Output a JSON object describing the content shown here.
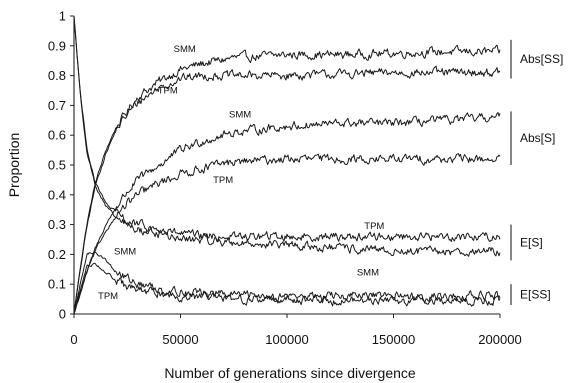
{
  "chart_data": {
    "type": "line",
    "xlabel": "Number of generations since divergence",
    "ylabel": "Proportion",
    "xlim": [
      0,
      200000
    ],
    "ylim": [
      0,
      1
    ],
    "x_ticks": [
      0,
      50000,
      100000,
      150000,
      200000
    ],
    "x_tick_labels": [
      "0",
      "50000",
      "100000",
      "150000",
      "200000"
    ],
    "y_ticks": [
      0,
      0.1,
      0.2,
      0.3,
      0.4,
      0.5,
      0.6,
      0.7,
      0.8,
      0.9,
      1
    ],
    "y_tick_labels": [
      "0",
      "0.1",
      "0.2",
      "0.3",
      "0.4",
      "0.5",
      "0.6",
      "0.7",
      "0.8",
      "0.9",
      "1"
    ],
    "grid": false,
    "series": [
      {
        "name": "SMM",
        "group": "Abs[SS]",
        "x": [
          0,
          3000,
          6000,
          10000,
          15000,
          20000,
          25000,
          30000,
          40000,
          50000,
          60000,
          75000,
          100000,
          125000,
          150000,
          175000,
          200000
        ],
        "y": [
          0.0,
          0.16,
          0.3,
          0.44,
          0.55,
          0.63,
          0.68,
          0.73,
          0.78,
          0.82,
          0.84,
          0.86,
          0.87,
          0.87,
          0.875,
          0.88,
          0.88
        ]
      },
      {
        "name": "TPM",
        "group": "Abs[SS]",
        "x": [
          0,
          3000,
          6000,
          10000,
          15000,
          20000,
          25000,
          30000,
          40000,
          50000,
          60000,
          75000,
          100000,
          125000,
          150000,
          175000,
          200000
        ],
        "y": [
          0.0,
          0.15,
          0.29,
          0.43,
          0.54,
          0.62,
          0.67,
          0.71,
          0.76,
          0.79,
          0.8,
          0.8,
          0.8,
          0.805,
          0.81,
          0.81,
          0.81
        ]
      },
      {
        "name": "SMM",
        "group": "Abs[S]",
        "x": [
          0,
          3000,
          6000,
          10000,
          15000,
          20000,
          25000,
          30000,
          40000,
          50000,
          60000,
          75000,
          100000,
          125000,
          150000,
          175000,
          200000
        ],
        "y": [
          0.0,
          0.07,
          0.14,
          0.22,
          0.3,
          0.36,
          0.41,
          0.45,
          0.5,
          0.55,
          0.58,
          0.61,
          0.63,
          0.64,
          0.64,
          0.65,
          0.66
        ]
      },
      {
        "name": "TPM",
        "group": "Abs[S]",
        "x": [
          0,
          3000,
          6000,
          10000,
          15000,
          20000,
          25000,
          30000,
          40000,
          50000,
          60000,
          75000,
          100000,
          125000,
          150000,
          175000,
          200000
        ],
        "y": [
          0.0,
          0.07,
          0.14,
          0.21,
          0.28,
          0.33,
          0.37,
          0.4,
          0.44,
          0.47,
          0.49,
          0.51,
          0.52,
          0.52,
          0.52,
          0.52,
          0.52
        ]
      },
      {
        "name": "TPM",
        "group": "E[S]",
        "x": [
          0,
          3000,
          6000,
          10000,
          15000,
          20000,
          25000,
          30000,
          40000,
          50000,
          60000,
          75000,
          100000,
          125000,
          150000,
          175000,
          200000
        ],
        "y": [
          1.0,
          0.74,
          0.56,
          0.44,
          0.37,
          0.34,
          0.31,
          0.3,
          0.28,
          0.27,
          0.26,
          0.26,
          0.26,
          0.26,
          0.26,
          0.26,
          0.26
        ]
      },
      {
        "name": "SMM",
        "group": "E[S]",
        "x": [
          0,
          3000,
          6000,
          10000,
          15000,
          20000,
          25000,
          30000,
          40000,
          50000,
          60000,
          75000,
          100000,
          125000,
          150000,
          175000,
          200000
        ],
        "y": [
          1.0,
          0.73,
          0.55,
          0.43,
          0.36,
          0.32,
          0.3,
          0.28,
          0.27,
          0.25,
          0.25,
          0.24,
          0.23,
          0.22,
          0.21,
          0.21,
          0.21
        ]
      },
      {
        "name": "SMM",
        "group": "E[SS]",
        "x": [
          0,
          3000,
          6000,
          10000,
          15000,
          20000,
          25000,
          30000,
          40000,
          50000,
          60000,
          75000,
          100000,
          125000,
          150000,
          175000,
          200000
        ],
        "y": [
          0.0,
          0.1,
          0.2,
          0.21,
          0.18,
          0.14,
          0.12,
          0.1,
          0.085,
          0.075,
          0.07,
          0.065,
          0.06,
          0.06,
          0.06,
          0.06,
          0.06
        ]
      },
      {
        "name": "TPM",
        "group": "E[SS]",
        "x": [
          0,
          3000,
          6000,
          10000,
          15000,
          20000,
          25000,
          30000,
          40000,
          50000,
          60000,
          75000,
          100000,
          125000,
          150000,
          175000,
          200000
        ],
        "y": [
          0.0,
          0.08,
          0.16,
          0.17,
          0.14,
          0.11,
          0.09,
          0.08,
          0.07,
          0.06,
          0.055,
          0.05,
          0.05,
          0.045,
          0.045,
          0.045,
          0.045
        ]
      }
    ],
    "annotations": [
      {
        "text": "SMM",
        "x": 52000,
        "y": 0.89
      },
      {
        "text": "TPM",
        "x": 44000,
        "y": 0.75
      },
      {
        "text": "SMM",
        "x": 78000,
        "y": 0.67
      },
      {
        "text": "TPM",
        "x": 70000,
        "y": 0.45
      },
      {
        "text": "TPM",
        "x": 141000,
        "y": 0.295
      },
      {
        "text": "SMM",
        "x": 138000,
        "y": 0.14
      },
      {
        "text": "SMM",
        "x": 24000,
        "y": 0.21
      },
      {
        "text": "TPM",
        "x": 16000,
        "y": 0.06
      }
    ],
    "group_labels": [
      {
        "text": "Abs[SS]",
        "y_range": [
          0.79,
          0.92
        ]
      },
      {
        "text": "Abs[S]",
        "y_range": [
          0.5,
          0.68
        ]
      },
      {
        "text": "E[S]",
        "y_range": [
          0.18,
          0.3
        ]
      },
      {
        "text": "E[SS]",
        "y_range": [
          0.03,
          0.1
        ]
      }
    ]
  }
}
